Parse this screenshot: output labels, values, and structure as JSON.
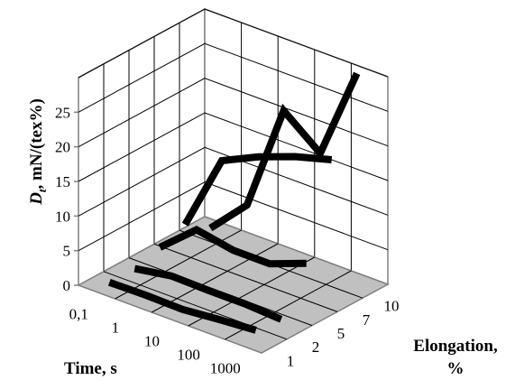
{
  "chart_data": {
    "type": "line",
    "title": "",
    "ylabel": "D_t, mN/(tex%)",
    "ylabel_main": "D",
    "ylabel_sub": "t",
    "ylabel_rest": ", mN/(tex%)",
    "xlabel": "Time, s",
    "zlabel_line1": "Elongation,",
    "zlabel_line2": "%",
    "ylim": [
      0,
      30
    ],
    "y_ticks": [
      "0",
      "5",
      "10",
      "15",
      "20",
      "25"
    ],
    "y_tick_values": [
      0,
      5,
      10,
      15,
      20,
      25
    ],
    "categories": [
      "0,1",
      "1",
      "10",
      "100",
      "1000"
    ],
    "depth_categories": [
      "1",
      "2",
      "5",
      "7",
      "10"
    ],
    "grid": true,
    "series": [
      {
        "elongation": "1",
        "values": [
          0.4,
          0.5,
          0.4,
          0.9,
          1.3
        ]
      },
      {
        "elongation": "2",
        "values": [
          0.4,
          1.3,
          1.2,
          1.2,
          0.9
        ]
      },
      {
        "elongation": "5",
        "values": [
          1.5,
          6.0,
          5.0,
          5.0,
          7.0
        ]
      },
      {
        "elongation": "7",
        "values": [
          2.8,
          14.0,
          16.5,
          18.5,
          20.0
        ]
      },
      {
        "elongation": "10",
        "values": [
          0.3,
          5.6,
          21.2,
          17.0,
          30.5
        ]
      }
    ],
    "colors": {
      "floor": "#c0c0c0",
      "walls": "#ffffff",
      "grid": "#000000",
      "frame": "#808080",
      "line": "#000000"
    }
  }
}
